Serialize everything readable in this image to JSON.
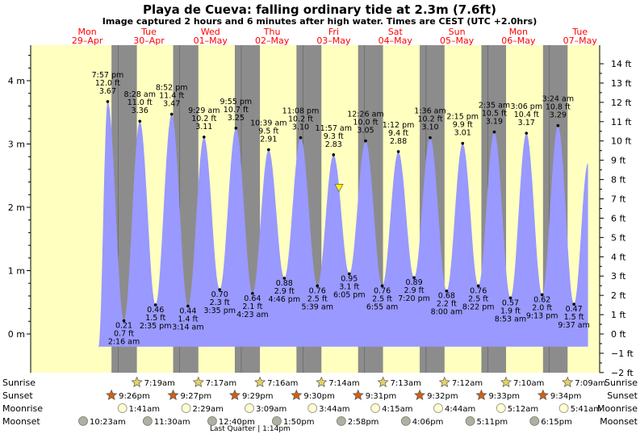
{
  "title": "Playa de Cueva: falling  ordinary tide at 2.3m (7.6ft)",
  "subtitle": "Image captured 2 hours and 6 minutes after high water. Times are CEST (UTC +2.0hrs)",
  "colors": {
    "day": "#ffffc0",
    "night": "#8c8c8c",
    "tide": "#9999ff",
    "day_label": "#ff0000",
    "marker": "#ffff00"
  },
  "days": [
    {
      "dow": "Mon",
      "date": "29–Apr"
    },
    {
      "dow": "Tue",
      "date": "30–Apr"
    },
    {
      "dow": "Wed",
      "date": "01–May"
    },
    {
      "dow": "Thu",
      "date": "02–May"
    },
    {
      "dow": "Fri",
      "date": "03–May"
    },
    {
      "dow": "Sat",
      "date": "04–May"
    },
    {
      "dow": "Sun",
      "date": "05–May"
    },
    {
      "dow": "Mon",
      "date": "06–May"
    },
    {
      "dow": "Tue",
      "date": "07–May"
    }
  ],
  "chart_data": {
    "type": "area",
    "x_unit": "hours from Mon 29-Apr 00:00 CEST",
    "y_unit": "m",
    "ylim_m": [
      -0.2,
      4.63
    ],
    "y_ticks_m": [
      "0 m",
      "1 m",
      "2 m",
      "3 m",
      "4 m"
    ],
    "y_ticks_ft": [
      "−2 ft",
      "−1 ft",
      "0 ft",
      "1 ft",
      "2 ft",
      "3 ft",
      "4 ft",
      "5 ft",
      "6 ft",
      "7 ft",
      "8 ft",
      "9 ft",
      "10 ft",
      "11 ft",
      "12 ft",
      "13 ft",
      "14 ft"
    ],
    "current": {
      "label": "falling  ordinary tide",
      "height_m": 2.3,
      "height_ft": 7.6
    },
    "extremes": [
      {
        "kind": "high",
        "time": "7:57 pm",
        "ft": "12.0 ft",
        "m": "3.67 m",
        "h": 19.95,
        "height": 3.67
      },
      {
        "kind": "low",
        "time": "2:16 am",
        "ft": "0.7 ft",
        "m": "0.21 m",
        "h": 26.27,
        "height": 0.21
      },
      {
        "kind": "high",
        "time": "8:28 am",
        "ft": "11.0 ft",
        "m": "3.36 m",
        "h": 32.47,
        "height": 3.36
      },
      {
        "kind": "low",
        "time": "2:35 pm",
        "ft": "1.5 ft",
        "m": "0.46 m",
        "h": 38.58,
        "height": 0.46
      },
      {
        "kind": "high",
        "time": "8:52 pm",
        "ft": "11.4 ft",
        "m": "3.47 m",
        "h": 44.87,
        "height": 3.47
      },
      {
        "kind": "low",
        "time": "3:14 am",
        "ft": "1.4 ft",
        "m": "0.44 m",
        "h": 51.23,
        "height": 0.44
      },
      {
        "kind": "high",
        "time": "9:29 am",
        "ft": "10.2 ft",
        "m": "3.11 m",
        "h": 57.48,
        "height": 3.11
      },
      {
        "kind": "low",
        "time": "3:35 pm",
        "ft": "2.3 ft",
        "m": "0.70 m",
        "h": 63.58,
        "height": 0.7
      },
      {
        "kind": "high",
        "time": "9:55 pm",
        "ft": "10.7 ft",
        "m": "3.25 m",
        "h": 69.92,
        "height": 3.25
      },
      {
        "kind": "low",
        "time": "4:23 am",
        "ft": "2.1 ft",
        "m": "0.64 m",
        "h": 76.38,
        "height": 0.64
      },
      {
        "kind": "high",
        "time": "10:39 am",
        "ft": "9.5 ft",
        "m": "2.91 m",
        "h": 82.65,
        "height": 2.91
      },
      {
        "kind": "low",
        "time": "4:46 pm",
        "ft": "2.9 ft",
        "m": "0.88 m",
        "h": 88.77,
        "height": 0.88
      },
      {
        "kind": "high",
        "time": "11:08 pm",
        "ft": "10.2 ft",
        "m": "3.10 m",
        "h": 95.13,
        "height": 3.1
      },
      {
        "kind": "low",
        "time": "5:39 am",
        "ft": "2.5 ft",
        "m": "0.76 m",
        "h": 101.65,
        "height": 0.76
      },
      {
        "kind": "high",
        "time": "11:57 am",
        "ft": "9.3 ft",
        "m": "2.83 m",
        "h": 107.95,
        "height": 2.83
      },
      {
        "kind": "low",
        "time": "6:05 pm",
        "ft": "3.1 ft",
        "m": "0.95 m",
        "h": 114.08,
        "height": 0.95
      },
      {
        "kind": "high",
        "time": "12:26 am",
        "ft": "10.0 ft",
        "m": "3.05 m",
        "h": 120.43,
        "height": 3.05
      },
      {
        "kind": "low",
        "time": "6:55 am",
        "ft": "2.5 ft",
        "m": "0.76 m",
        "h": 126.92,
        "height": 0.76
      },
      {
        "kind": "high",
        "time": "1:12 pm",
        "ft": "9.4 ft",
        "m": "2.88 m",
        "h": 133.2,
        "height": 2.88
      },
      {
        "kind": "low",
        "time": "7:20 pm",
        "ft": "2.9 ft",
        "m": "0.89 m",
        "h": 139.33,
        "height": 0.89
      },
      {
        "kind": "high",
        "time": "1:36 am",
        "ft": "10.2 ft",
        "m": "3.10 m",
        "h": 145.6,
        "height": 3.1
      },
      {
        "kind": "low",
        "time": "8:00 am",
        "ft": "2.2 ft",
        "m": "0.68 m",
        "h": 152.0,
        "height": 0.68
      },
      {
        "kind": "high",
        "time": "2:15 pm",
        "ft": "9.9 ft",
        "m": "3.01 m",
        "h": 158.25,
        "height": 3.01
      },
      {
        "kind": "low",
        "time": "8:22 pm",
        "ft": "2.5 ft",
        "m": "0.76 m",
        "h": 164.37,
        "height": 0.76
      },
      {
        "kind": "high",
        "time": "2:35 am",
        "ft": "10.5 ft",
        "m": "3.19 m",
        "h": 170.58,
        "height": 3.19
      },
      {
        "kind": "low",
        "time": "8:53 am",
        "ft": "1.9 ft",
        "m": "0.57 m",
        "h": 176.88,
        "height": 0.57
      },
      {
        "kind": "high",
        "time": "3:06 pm",
        "ft": "10.4 ft",
        "m": "3.17 m",
        "h": 183.1,
        "height": 3.17
      },
      {
        "kind": "low",
        "time": "9:13 pm",
        "ft": "2.0 ft",
        "m": "0.62 m",
        "h": 189.22,
        "height": 0.62
      },
      {
        "kind": "high",
        "time": "3:24 am",
        "ft": "10.8 ft",
        "m": "3.29 m",
        "h": 195.4,
        "height": 3.29
      },
      {
        "kind": "low",
        "time": "9:37 am",
        "ft": "1.5 ft",
        "m": "0.47 m",
        "h": 201.62,
        "height": 0.47
      }
    ],
    "data_range_h": [
      16.35,
      207.1
    ],
    "data_start_height": -0.2,
    "data_end_height": 2.7,
    "nights": [
      {
        "start": 21.43,
        "end": 31.32
      },
      {
        "start": 45.45,
        "end": 55.28
      },
      {
        "start": 69.48,
        "end": 79.27
      },
      {
        "start": 93.5,
        "end": 103.23
      },
      {
        "start": 117.52,
        "end": 127.22
      },
      {
        "start": 141.53,
        "end": 151.2
      },
      {
        "start": 165.55,
        "end": 175.17
      },
      {
        "start": 189.57,
        "end": 199.15
      }
    ]
  },
  "astro": {
    "row_labels": [
      "Sunrise",
      "Sunset",
      "Moonrise",
      "Moonset"
    ],
    "sunrise": [
      {
        "label": "7:19am",
        "h": 31.32
      },
      {
        "label": "7:17am",
        "h": 55.28
      },
      {
        "label": "7:16am",
        "h": 79.27
      },
      {
        "label": "7:14am",
        "h": 103.23
      },
      {
        "label": "7:13am",
        "h": 127.22
      },
      {
        "label": "7:12am",
        "h": 151.2
      },
      {
        "label": "7:10am",
        "h": 175.17
      },
      {
        "label": "7:09am",
        "h": 199.15
      }
    ],
    "sunset": [
      {
        "label": "9:26pm",
        "h": 21.43
      },
      {
        "label": "9:27pm",
        "h": 45.45
      },
      {
        "label": "9:29pm",
        "h": 69.48
      },
      {
        "label": "9:30pm",
        "h": 93.5
      },
      {
        "label": "9:31pm",
        "h": 117.52
      },
      {
        "label": "9:32pm",
        "h": 141.53
      },
      {
        "label": "9:33pm",
        "h": 165.55
      },
      {
        "label": "9:34pm",
        "h": 189.57
      }
    ],
    "moonrise": [
      {
        "label": "1:41am",
        "h": 25.68
      },
      {
        "label": "2:29am",
        "h": 50.48
      },
      {
        "label": "3:09am",
        "h": 75.15
      },
      {
        "label": "3:44am",
        "h": 99.73
      },
      {
        "label": "4:15am",
        "h": 124.25
      },
      {
        "label": "4:44am",
        "h": 148.73
      },
      {
        "label": "5:12am",
        "h": 173.2
      },
      {
        "label": "5:41am",
        "h": 197.68
      }
    ],
    "moonset": [
      {
        "label": "10:23am",
        "h": 10.38
      },
      {
        "label": "11:30am",
        "h": 35.5
      },
      {
        "label": "12:40pm",
        "h": 60.67
      },
      {
        "label": "1:50pm",
        "h": 85.83
      },
      {
        "label": "2:58pm",
        "h": 110.97
      },
      {
        "label": "4:06pm",
        "h": 136.1
      },
      {
        "label": "5:11pm",
        "h": 161.18
      },
      {
        "label": "6:15pm",
        "h": 186.25
      }
    ],
    "moon_phase": "Last Quarter | 1:14pm"
  }
}
